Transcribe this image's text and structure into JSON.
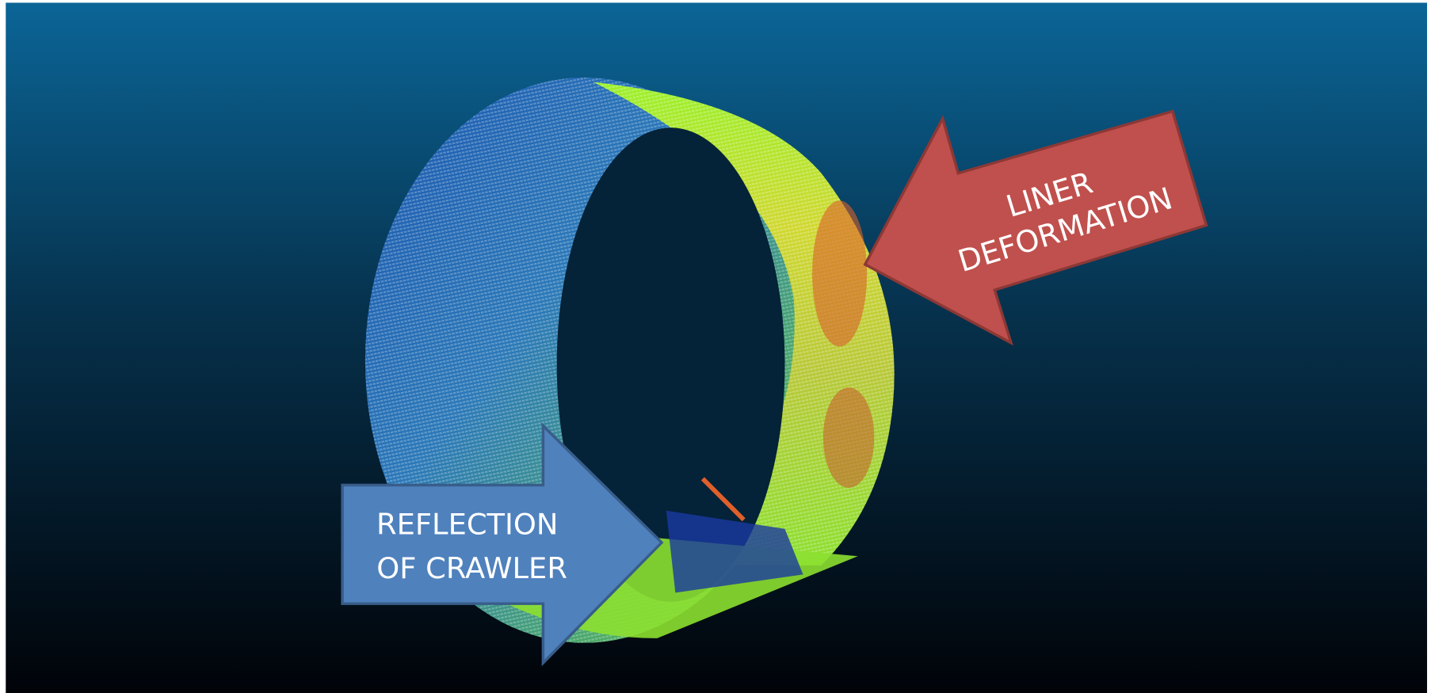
{
  "annotations": [
    {
      "lines": [
        "LINER",
        "DEFORMATION"
      ]
    },
    {
      "lines": [
        "REFLECTION",
        "OF CRAWLER"
      ]
    }
  ]
}
